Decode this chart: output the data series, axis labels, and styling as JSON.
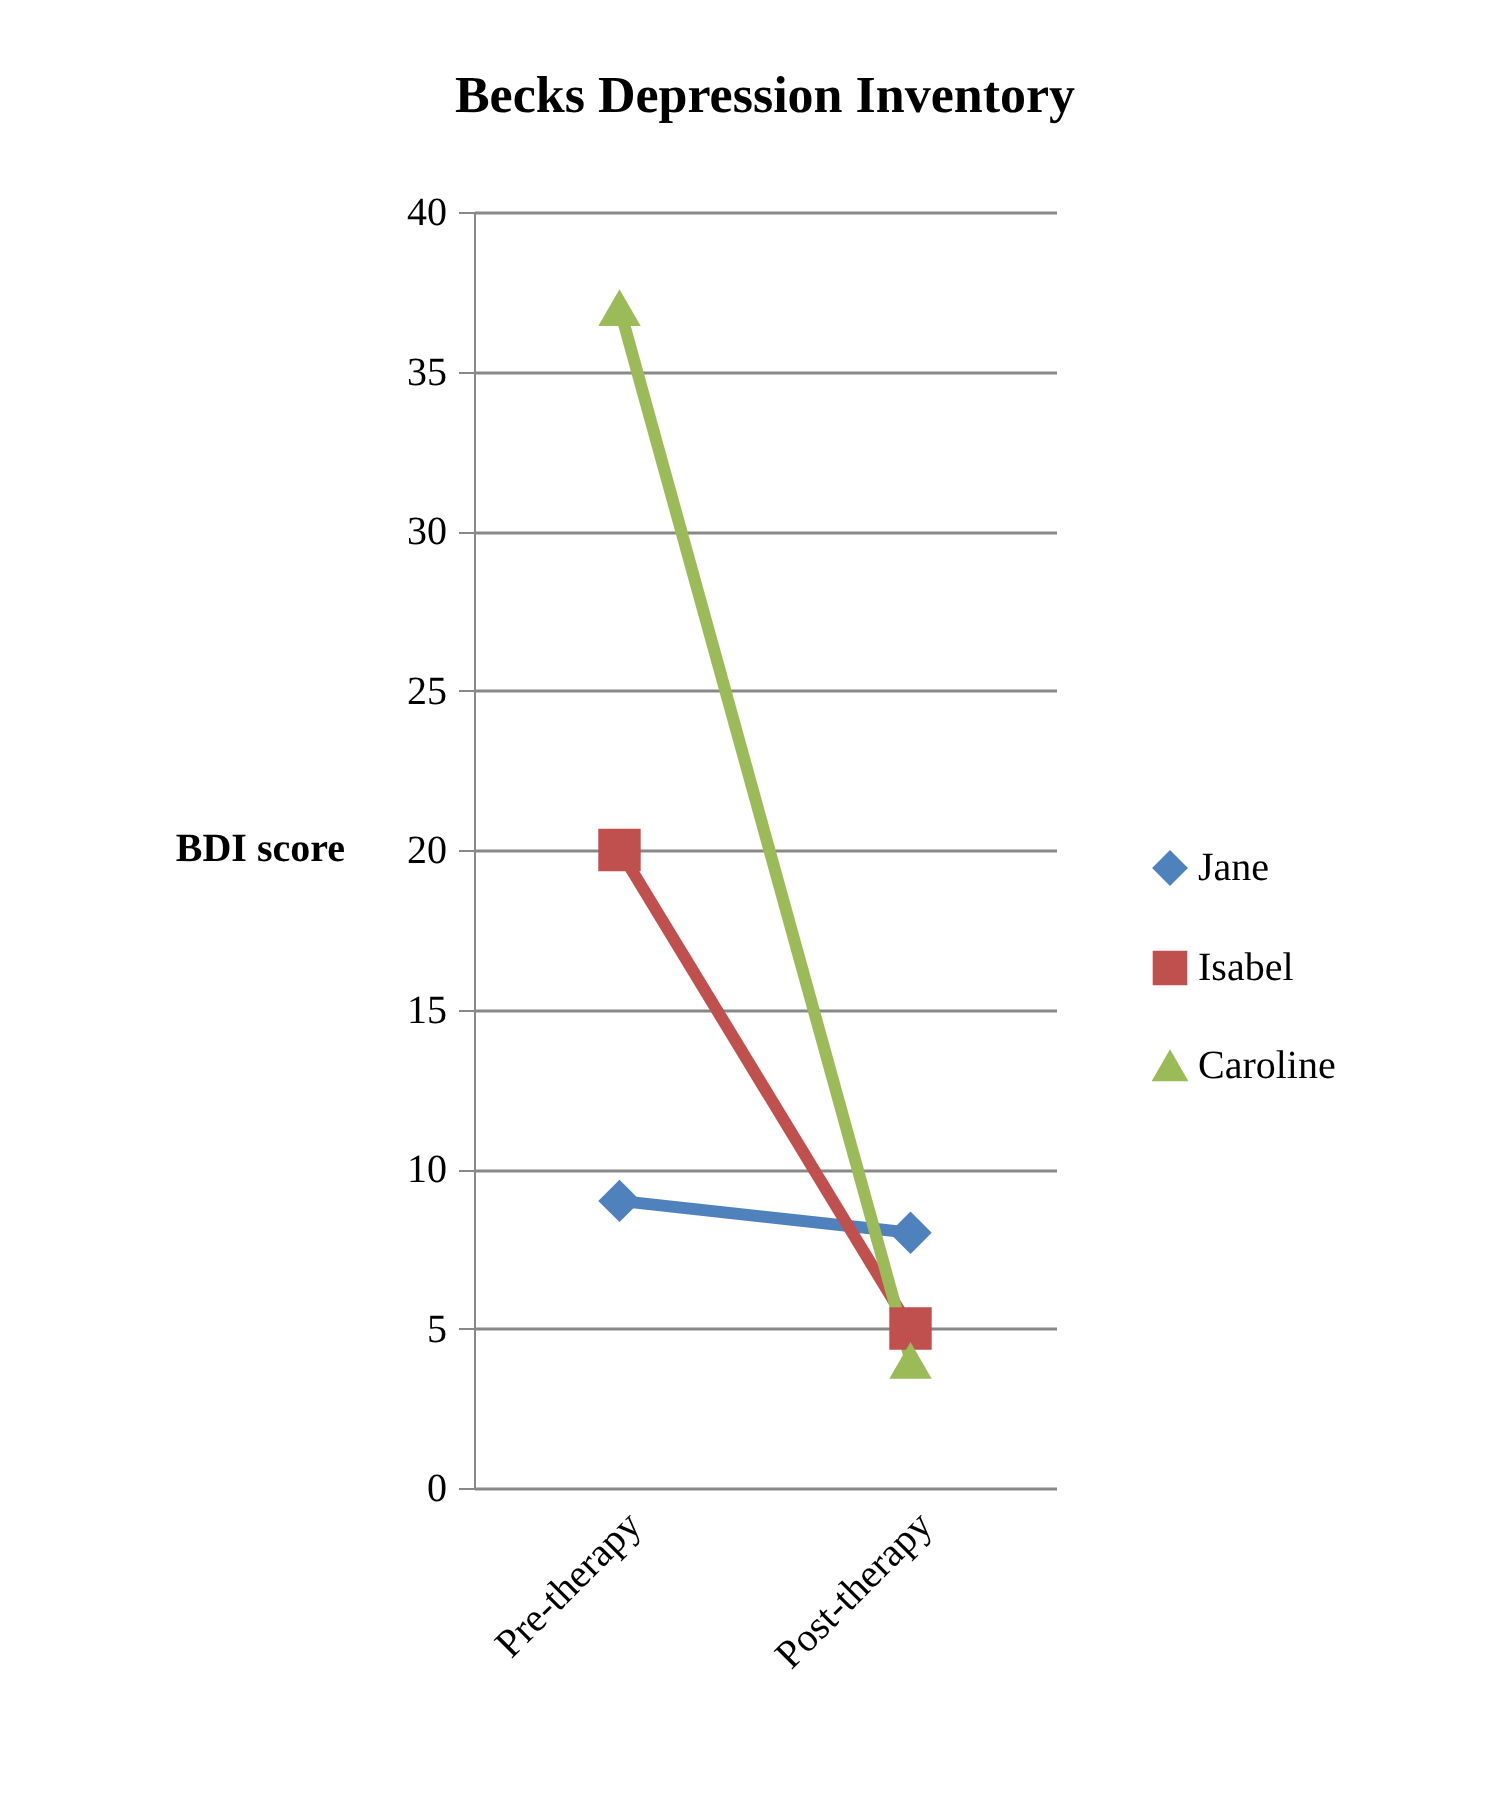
{
  "chart_data": {
    "type": "line",
    "title": "Becks Depression Inventory",
    "ylabel": "BDI score",
    "categories": [
      "Pre-therapy",
      "Post-therapy"
    ],
    "series": [
      {
        "name": "Jane",
        "color": "#4f81bd",
        "values": [
          9,
          8
        ],
        "marker": "diamond"
      },
      {
        "name": "Isabel",
        "color": "#c0504d",
        "values": [
          20,
          5
        ],
        "marker": "square"
      },
      {
        "name": "Caroline",
        "color": "#9bbb59",
        "values": [
          37,
          4
        ],
        "marker": "triangle"
      }
    ],
    "ylim": [
      0,
      40
    ],
    "yticks": [
      0,
      5,
      10,
      15,
      20,
      25,
      30,
      35,
      40
    ],
    "grid": "y",
    "legend": "right",
    "line_style": "solid"
  }
}
